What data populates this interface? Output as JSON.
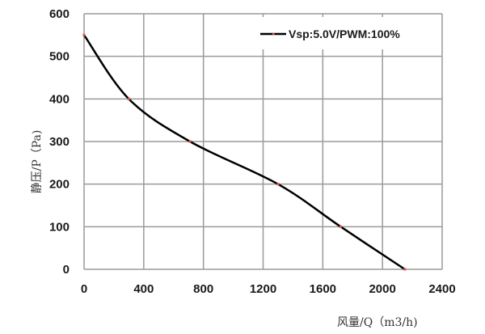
{
  "chart_data": {
    "type": "line",
    "title": "",
    "xlabel": "风量/Q（m3/h)",
    "ylabel": "静压/P（Pa)",
    "xlim": [
      0,
      2400
    ],
    "ylim": [
      0,
      600
    ],
    "x_ticks": [
      0,
      400,
      800,
      1200,
      1600,
      2000,
      2400
    ],
    "y_ticks": [
      0,
      100,
      200,
      300,
      400,
      500,
      600
    ],
    "grid": true,
    "legend_position": "upper right",
    "series": [
      {
        "name": "Vsp:5.0V/PWM:100%",
        "line_color": "#000000",
        "marker_color": "#e05050",
        "x": [
          0,
          300,
          710,
          1300,
          1720,
          2150
        ],
        "values": [
          550,
          400,
          300,
          200,
          100,
          0
        ]
      }
    ]
  },
  "colors": {
    "grid": "#9a9a9a",
    "line": "#000000",
    "marker": "#e05050",
    "text": "#1a1a1a"
  }
}
